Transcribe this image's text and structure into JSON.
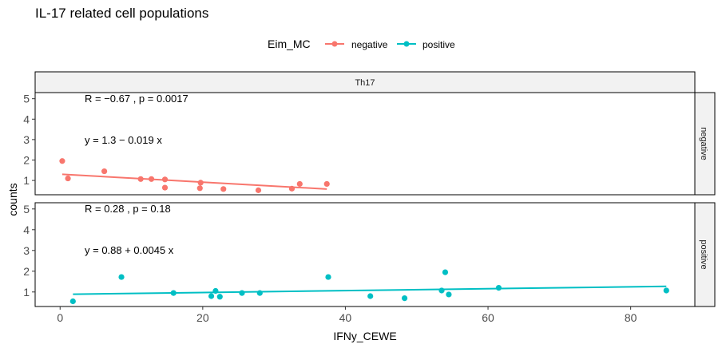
{
  "chart_data": {
    "type": "scatter",
    "title": "IL-17 related cell populations",
    "xlabel": "IFNy_CEWE",
    "ylabel": "counts",
    "xlim": [
      -3.5,
      89
    ],
    "xticks": [
      0,
      20,
      40,
      60,
      80
    ],
    "yticks": [
      1,
      2,
      3,
      4,
      5
    ],
    "legend": {
      "title": "Eim_MC",
      "placement": "top",
      "entries": [
        {
          "label": "negative",
          "color": "#F8766D"
        },
        {
          "label": "positive",
          "color": "#00BFC4"
        }
      ]
    },
    "column_strip": "Th17",
    "panels": [
      {
        "name": "negative",
        "color": "#F8766D",
        "ylim": [
          0.3,
          5.3
        ],
        "points": [
          {
            "x": 0.3,
            "y": 1.95
          },
          {
            "x": 1.1,
            "y": 1.1
          },
          {
            "x": 6.2,
            "y": 1.45
          },
          {
            "x": 11.3,
            "y": 1.07
          },
          {
            "x": 12.8,
            "y": 1.07
          },
          {
            "x": 14.7,
            "y": 1.05
          },
          {
            "x": 14.7,
            "y": 0.65
          },
          {
            "x": 19.6,
            "y": 0.62
          },
          {
            "x": 19.7,
            "y": 0.89
          },
          {
            "x": 22.9,
            "y": 0.58
          },
          {
            "x": 27.8,
            "y": 0.52
          },
          {
            "x": 32.5,
            "y": 0.6
          },
          {
            "x": 33.6,
            "y": 0.83
          },
          {
            "x": 37.4,
            "y": 0.83
          }
        ],
        "fit": {
          "x0": 0.3,
          "x1": 37.4,
          "y0": 1.3,
          "y1": 0.58
        },
        "r_text": "R = −0.67 , p = 0.0017",
        "eq_text": "y = 1.3 − 0.019 x"
      },
      {
        "name": "positive",
        "color": "#00BFC4",
        "ylim": [
          0.3,
          5.3
        ],
        "points": [
          {
            "x": 1.8,
            "y": 0.55
          },
          {
            "x": 8.6,
            "y": 1.72
          },
          {
            "x": 15.9,
            "y": 0.95
          },
          {
            "x": 21.2,
            "y": 0.8
          },
          {
            "x": 21.8,
            "y": 1.05
          },
          {
            "x": 22.4,
            "y": 0.77
          },
          {
            "x": 25.5,
            "y": 0.95
          },
          {
            "x": 28.0,
            "y": 0.95
          },
          {
            "x": 37.6,
            "y": 1.72
          },
          {
            "x": 43.5,
            "y": 0.8
          },
          {
            "x": 48.3,
            "y": 0.7
          },
          {
            "x": 53.5,
            "y": 1.07
          },
          {
            "x": 54.0,
            "y": 1.95
          },
          {
            "x": 54.5,
            "y": 0.88
          },
          {
            "x": 61.5,
            "y": 1.2
          },
          {
            "x": 85.0,
            "y": 1.07
          }
        ],
        "fit": {
          "x0": 1.8,
          "x1": 85.0,
          "y0": 0.89,
          "y1": 1.27
        },
        "r_text": "R = 0.28 , p = 0.18",
        "eq_text": "y = 0.88 + 0.0045 x"
      }
    ]
  }
}
